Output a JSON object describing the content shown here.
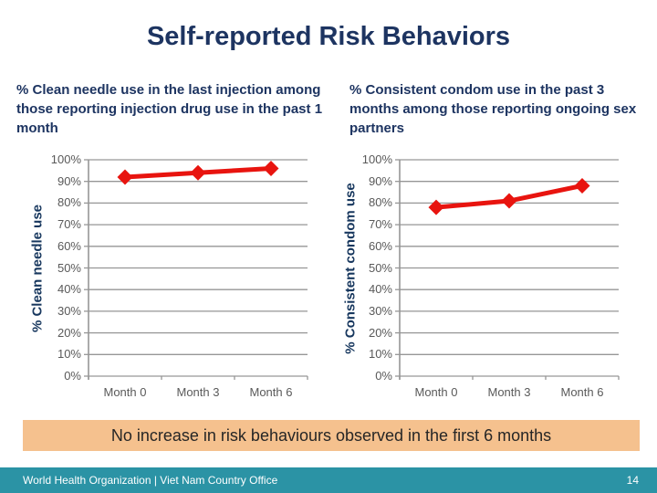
{
  "slide": {
    "title": "Self-reported Risk Behaviors",
    "banner": "No increase in risk behaviours observed in the first 6 months",
    "footer": {
      "text": "World Health Organization | Viet Nam  Country Office",
      "page": "14"
    }
  },
  "colors": {
    "title_navy": "#1d3461",
    "axis_title_navy": "#17375e",
    "series_red": "#e8140f",
    "gridline_gray": "#969696",
    "tick_text_gray": "#595959",
    "banner_bg": "#f5c18e",
    "banner_text": "#262626",
    "footer_bg": "#2b93a5",
    "footer_text": "#ffffff"
  },
  "chart_data": [
    {
      "type": "line",
      "title": "% Clean needle use in the last injection among those reporting injection drug use in the past 1 month",
      "categories": [
        "Month 0",
        "Month 3",
        "Month 6"
      ],
      "values": [
        92,
        94,
        96
      ],
      "xlabel": "",
      "ylabel": "% Clean needle use",
      "ylim": [
        0,
        100
      ],
      "yticks": [
        "100%",
        "90%",
        "80%",
        "70%",
        "60%",
        "50%",
        "40%",
        "30%",
        "20%",
        "10%",
        "0%"
      ],
      "grid": true,
      "legend": false,
      "marker": "diamond",
      "series_color": "#e8140f"
    },
    {
      "type": "line",
      "title": "% Consistent condom use in the past 3 months among those reporting ongoing sex partners",
      "categories": [
        "Month 0",
        "Month 3",
        "Month 6"
      ],
      "values": [
        78,
        81,
        88
      ],
      "xlabel": "",
      "ylabel": "% Consistent condom use",
      "ylim": [
        0,
        100
      ],
      "yticks": [
        "100%",
        "90%",
        "80%",
        "70%",
        "60%",
        "50%",
        "40%",
        "30%",
        "20%",
        "10%",
        "0%"
      ],
      "grid": true,
      "legend": false,
      "marker": "diamond",
      "series_color": "#e8140f"
    }
  ]
}
